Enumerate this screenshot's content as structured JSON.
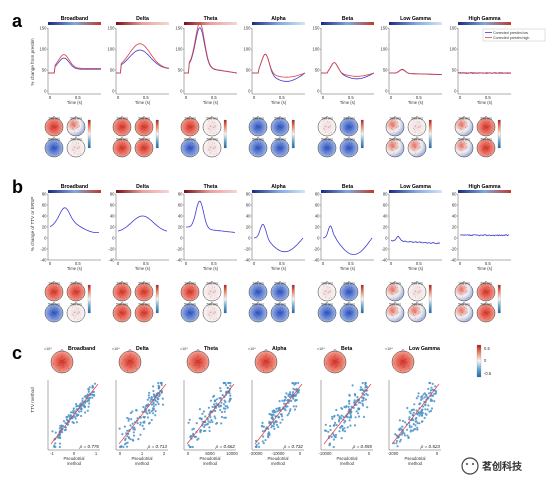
{
  "panels": [
    {
      "letter": "a"
    },
    {
      "letter": "b"
    },
    {
      "letter": "c"
    }
  ],
  "bands": [
    "Broadband",
    "Delta",
    "Theta",
    "Alpha",
    "Beta",
    "Low Gamma",
    "High Gamma"
  ],
  "bands_c": [
    "Broadband",
    "Delta",
    "Theta",
    "Alpha",
    "Beta",
    "Low Gamma"
  ],
  "panel_a": {
    "ylabel": "% change from prestim",
    "xlabel": "Time (s)",
    "legend": [
      "Corrected prestim low",
      "Corrected prestim high"
    ],
    "colors": {
      "low": "#3b3bd1",
      "high": "#e0403a"
    },
    "topo_times": [
      "100 ms",
      "300 ms",
      "500 ms",
      "700 ms"
    ]
  },
  "panel_b": {
    "ylabel": "% change of TTV or ERSP",
    "xlabel": "Time (s)",
    "color": "#3b3bd1",
    "topo_times": [
      "100 ms",
      "300 ms",
      "500 ms",
      "700 ms"
    ]
  },
  "panel_c": {
    "ylabel": "TTV method",
    "xlabel": "Pseudotrial method",
    "correlations": [
      "ρ = 0.776",
      "ρ = 0.713",
      "ρ = 0.662",
      "ρ = 0.732",
      "ρ = 0.555",
      "ρ = 0.523"
    ],
    "colorbar_ticks": [
      "0.5",
      "0",
      "-0.5"
    ],
    "point_color": "#4a90c8",
    "fit_color": "#e04040"
  },
  "watermark": {
    "text": "茗创科技"
  }
}
